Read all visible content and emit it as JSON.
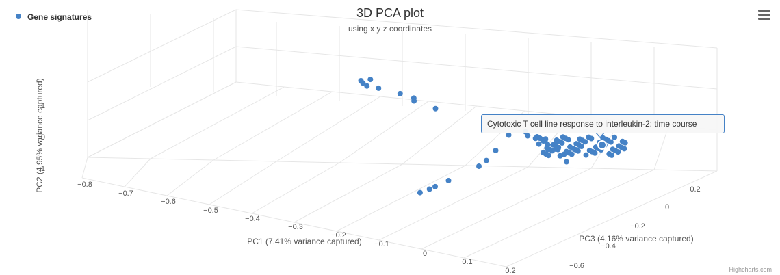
{
  "chart_data": {
    "type": "scatter3d",
    "title": "3D PCA plot",
    "subtitle": "using x y z coordinates",
    "legend": {
      "placement": "top-left",
      "items": [
        {
          "name": "Gene signatures",
          "color": "#4582c6"
        }
      ]
    },
    "xlabel": "PC1 (7.41% variance captured)",
    "ylabel": "PC2 (4.95% variance captured)",
    "zlabel": "PC3 (4.16% variance captured)",
    "xticks": [
      "−0.8",
      "−0.7",
      "−0.6",
      "−0.5",
      "−0.4",
      "−0.3",
      "−0.2",
      "−0.1",
      "0",
      "0.1",
      "0.2"
    ],
    "yticks": [
      "1",
      "0",
      "−1"
    ],
    "zticks": [
      "0.2",
      "0",
      "−0.2",
      "−0.4",
      "−0.6"
    ],
    "series": [
      {
        "name": "Gene signatures",
        "color": "#4582c6",
        "points": [
          [
            -0.62,
            1.1,
            0.25
          ],
          [
            -0.61,
            1.05,
            0.24
          ],
          [
            -0.6,
            1.08,
            0.26
          ],
          [
            -0.59,
            1.0,
            0.22
          ],
          [
            -0.55,
            0.95,
            0.2
          ],
          [
            -0.47,
            0.85,
            0.15
          ],
          [
            -0.42,
            0.75,
            0.12
          ],
          [
            -0.41,
            0.72,
            0.1
          ],
          [
            -0.33,
            0.55,
            0.05
          ],
          [
            -0.18,
            -0.9,
            -0.35
          ],
          [
            -0.16,
            -0.85,
            -0.34
          ],
          [
            -0.15,
            -0.82,
            -0.33
          ],
          [
            -0.12,
            -0.7,
            -0.32
          ],
          [
            -0.05,
            -0.4,
            -0.3
          ],
          [
            -0.04,
            -0.3,
            -0.28
          ],
          [
            -0.03,
            -0.1,
            -0.25
          ],
          [
            -0.02,
            0.2,
            -0.2
          ],
          [
            0.0,
            0.1,
            -0.15
          ],
          [
            0.02,
            0.05,
            -0.18
          ],
          [
            0.05,
            0.0,
            -0.2
          ],
          [
            0.08,
            -0.05,
            -0.22
          ],
          [
            0.1,
            0.1,
            -0.25
          ],
          [
            0.12,
            0.0,
            -0.28
          ],
          [
            0.13,
            -0.1,
            -0.3
          ],
          [
            0.15,
            0.05,
            -0.3
          ],
          [
            0.16,
            -0.05,
            -0.32
          ],
          [
            0.18,
            0.02,
            -0.35
          ],
          [
            0.2,
            -0.1,
            -0.38
          ],
          [
            0.22,
            0.0,
            -0.4
          ],
          [
            0.25,
            -0.1,
            -0.45
          ]
        ]
      }
    ]
  },
  "tooltip": {
    "text": "Cytotoxic T cell line response to interleukin-2: time course"
  },
  "credits": "Highcharts.com",
  "menu_icon": "hamburger-menu-icon"
}
